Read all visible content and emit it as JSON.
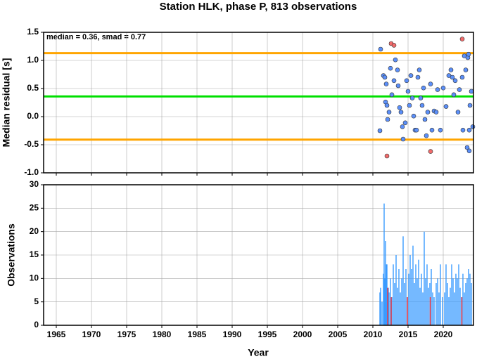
{
  "chart_data": [
    {
      "type": "scatter",
      "title": "Station HLK, phase P, 813 observations",
      "y_label": "Median residual [s]",
      "annotation": "median = 0.36, smad = 0.77",
      "xlim": [
        1963.2,
        2024.3
      ],
      "ylim": [
        -1.0,
        1.5
      ],
      "yticks": [
        {
          "value": -1.0,
          "label": "-1.0"
        },
        -0.5,
        {
          "value": 0.0,
          "label": "0.0"
        },
        0.5,
        {
          "value": 1.0,
          "label": "1.0"
        },
        1.5
      ],
      "grid": true,
      "hlines": [
        {
          "value": 1.13,
          "color": "#ffa500"
        },
        {
          "value": 0.36,
          "color": "#00e000"
        },
        {
          "value": -0.41,
          "color": "#ffa500"
        }
      ],
      "series": [
        {
          "color": "#5b8ff9",
          "x": [
            2011.1,
            2011.0,
            2011.5,
            2011.7,
            2011.8,
            2012.0,
            2011.9,
            2012.1,
            2012.3,
            2012.5,
            2012.7,
            2013.0,
            2013.2,
            2013.5,
            2013.6,
            2013.8,
            2014.0,
            2014.2,
            2014.3,
            2014.6,
            2014.8,
            2015.0,
            2015.2,
            2015.4,
            2015.6,
            2015.8,
            2016.0,
            2016.2,
            2016.4,
            2016.6,
            2016.8,
            2017.0,
            2017.2,
            2017.4,
            2017.6,
            2017.8,
            2018.2,
            2018.4,
            2018.7,
            2019.0,
            2019.2,
            2019.6,
            2020.0,
            2020.4,
            2020.8,
            2021.1,
            2021.3,
            2021.5,
            2021.7,
            2022.1,
            2022.3,
            2022.7,
            2022.8,
            2023.0,
            2023.2,
            2023.5,
            2023.6,
            2023.7,
            2023.8,
            2024.0,
            2024.2,
            2023.4,
            2023.7
          ],
          "values": [
            1.2,
            -0.25,
            0.73,
            0.7,
            0.26,
            0.2,
            0.58,
            -0.05,
            0.08,
            0.86,
            0.39,
            0.64,
            1.01,
            0.83,
            0.55,
            0.16,
            0.08,
            -0.18,
            -0.4,
            -0.11,
            0.64,
            0.45,
            0.2,
            0.73,
            0.33,
            0.01,
            -0.24,
            -0.24,
            0.7,
            0.83,
            0.33,
            0.2,
            0.51,
            -0.05,
            -0.34,
            0.08,
            0.58,
            -0.24,
            0.1,
            0.08,
            0.48,
            -0.24,
            0.51,
            0.18,
            0.73,
            0.83,
            0.7,
            0.39,
            0.64,
            0.08,
            0.48,
            0.7,
            -0.24,
            1.08,
            0.83,
            1.05,
            1.11,
            -0.24,
            0.2,
            0.45,
            -0.18,
            -0.55,
            -0.61
          ]
        },
        {
          "color": "#f26b6b",
          "x": [
            2012.6,
            2013.0,
            2012.0,
            2018.2,
            2022.7
          ],
          "values": [
            1.3,
            1.27,
            -0.7,
            -0.62,
            1.38
          ]
        }
      ]
    },
    {
      "type": "bar",
      "y_label": "Observations",
      "x_label": "Year",
      "xlim": [
        1963.2,
        2024.3
      ],
      "ylim": [
        0,
        30
      ],
      "xticks": [
        1965,
        1970,
        1975,
        1980,
        1985,
        1990,
        1995,
        2000,
        2005,
        2010,
        2015,
        2020
      ],
      "yticks": [
        0,
        5,
        10,
        15,
        20,
        25,
        30
      ],
      "grid": true,
      "series": [
        {
          "color": "#3a9bff",
          "x": [
            2011.0,
            2011.1,
            2011.3,
            2011.5,
            2011.6,
            2011.7,
            2011.8,
            2011.9,
            2012.0,
            2012.2,
            2012.3,
            2012.5,
            2012.7,
            2012.9,
            2013.1,
            2013.3,
            2013.5,
            2013.7,
            2013.9,
            2014.1,
            2014.3,
            2014.5,
            2014.7,
            2014.9,
            2015.1,
            2015.3,
            2015.5,
            2015.7,
            2015.9,
            2016.1,
            2016.3,
            2016.5,
            2016.7,
            2016.9,
            2017.1,
            2017.3,
            2017.5,
            2017.7,
            2017.9,
            2018.1,
            2018.3,
            2018.5,
            2018.7,
            2019.0,
            2019.2,
            2019.4,
            2019.6,
            2019.9,
            2020.2,
            2020.4,
            2020.6,
            2020.8,
            2021.0,
            2021.2,
            2021.4,
            2021.6,
            2021.8,
            2022.0,
            2022.2,
            2022.4,
            2022.6,
            2022.8,
            2023.0,
            2023.2,
            2023.4,
            2023.6,
            2023.8,
            2024.0
          ],
          "values": [
            7,
            8,
            5,
            11,
            26,
            10,
            18,
            13,
            13,
            8,
            7,
            10,
            6,
            13,
            9,
            15,
            8,
            12,
            7,
            10,
            19,
            9,
            12,
            6,
            11,
            15,
            12,
            17,
            9,
            13,
            10,
            14,
            8,
            11,
            7,
            20,
            10,
            13,
            8,
            9,
            12,
            7,
            6,
            9,
            10,
            7,
            13,
            6,
            7,
            13,
            9,
            6,
            8,
            13,
            10,
            7,
            11,
            10,
            13,
            8,
            6,
            11,
            7,
            9,
            10,
            12,
            11,
            9
          ]
        },
        {
          "color": "#ff3030",
          "x": [
            2012.1,
            2012.6,
            2014.9,
            2018.15,
            2022.65
          ],
          "values": [
            8,
            6,
            6,
            6,
            6
          ]
        }
      ]
    }
  ]
}
